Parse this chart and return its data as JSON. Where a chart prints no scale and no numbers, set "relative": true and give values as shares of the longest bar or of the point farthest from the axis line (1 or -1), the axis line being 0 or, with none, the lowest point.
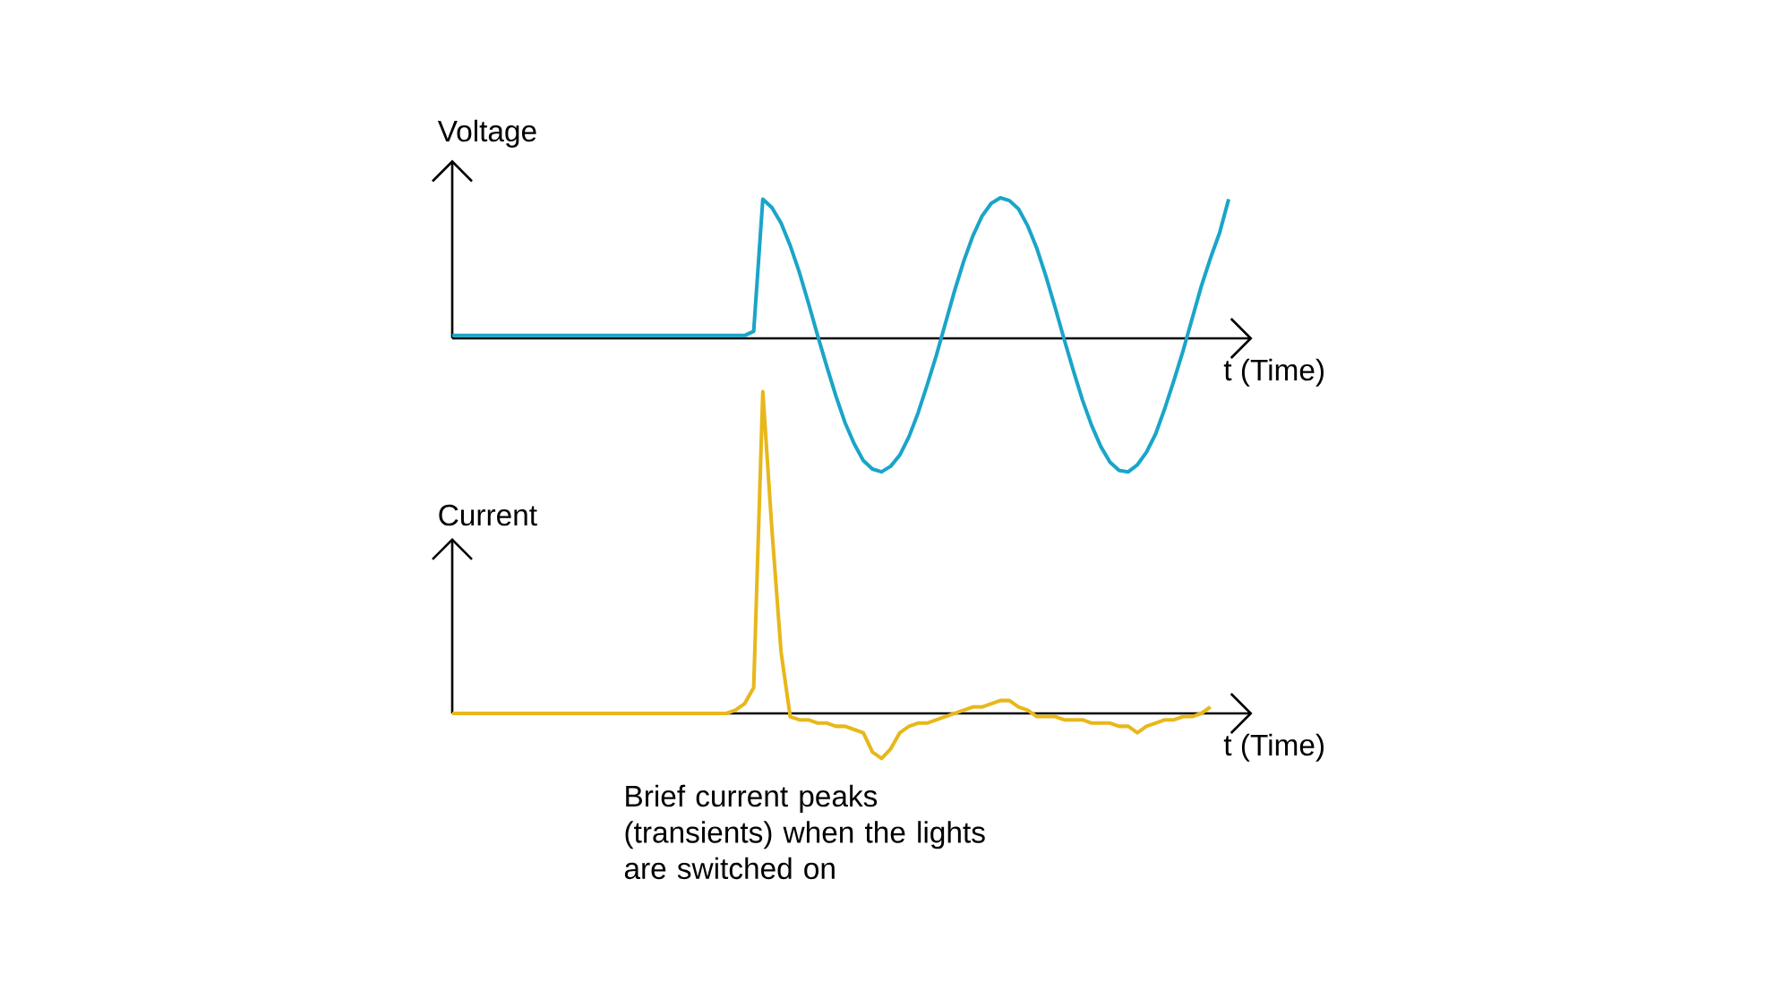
{
  "chart_data": [
    {
      "type": "line",
      "ylabel": "Voltage",
      "xlabel": "t (Time)",
      "relative": true,
      "color": "#1aa5c8",
      "categories": [
        null,
        null,
        null,
        null,
        null,
        null,
        null,
        null,
        null,
        null,
        null,
        null,
        null,
        null,
        null,
        null,
        null,
        null,
        null,
        null,
        null,
        null,
        null,
        null,
        null,
        null,
        null,
        null,
        null,
        null,
        null,
        null,
        null,
        null,
        null,
        null,
        null,
        null,
        null,
        null,
        null,
        null,
        null,
        null,
        null,
        null,
        null,
        null,
        null,
        null,
        null,
        null,
        null,
        null,
        null,
        null,
        null,
        null,
        null,
        null,
        null,
        null,
        null,
        null,
        null,
        null,
        null,
        null,
        null,
        null,
        null,
        null,
        null,
        null,
        null,
        null,
        null,
        null,
        null,
        null,
        null,
        null,
        null,
        null,
        null,
        null
      ],
      "values": [
        0.02,
        0.02,
        0.02,
        0.02,
        0.02,
        0.02,
        0.02,
        0.02,
        0.02,
        0.02,
        0.02,
        0.02,
        0.02,
        0.02,
        0.02,
        0.02,
        0.02,
        0.02,
        0.02,
        0.02,
        0.02,
        0.02,
        0.02,
        0.02,
        0.02,
        0.02,
        0.02,
        0.02,
        0.02,
        0.02,
        0.02,
        0.02,
        0.02,
        0.05,
        0.99,
        0.93,
        0.82,
        0.66,
        0.47,
        0.25,
        0.02,
        -0.2,
        -0.41,
        -0.6,
        -0.75,
        -0.87,
        -0.93,
        -0.95,
        -0.91,
        -0.83,
        -0.7,
        -0.53,
        -0.33,
        -0.12,
        0.11,
        0.34,
        0.55,
        0.73,
        0.87,
        0.96,
        1.0,
        0.98,
        0.92,
        0.8,
        0.64,
        0.44,
        0.22,
        -0.01,
        -0.23,
        -0.44,
        -0.62,
        -0.77,
        -0.88,
        -0.94,
        -0.95,
        -0.9,
        -0.81,
        -0.68,
        -0.5,
        -0.3,
        -0.09,
        0.14,
        0.37,
        0.57,
        0.75,
        0.99
      ]
    },
    {
      "type": "line",
      "ylabel": "Current",
      "xlabel": "t (Time)",
      "relative": true,
      "color": "#e8b71a",
      "annotations": [
        "Brief current peaks (transients) when the lights are switched on"
      ],
      "categories": [
        null,
        null,
        null,
        null,
        null,
        null,
        null,
        null,
        null,
        null,
        null,
        null,
        null,
        null,
        null,
        null,
        null,
        null,
        null,
        null,
        null,
        null,
        null,
        null,
        null,
        null,
        null,
        null,
        null,
        null,
        null,
        null,
        null,
        null,
        null,
        null,
        null,
        null,
        null,
        null,
        null,
        null,
        null,
        null,
        null,
        null,
        null,
        null,
        null,
        null,
        null,
        null,
        null,
        null,
        null,
        null,
        null,
        null,
        null,
        null,
        null,
        null,
        null,
        null,
        null,
        null,
        null,
        null,
        null,
        null,
        null,
        null,
        null,
        null,
        null,
        null,
        null,
        null,
        null,
        null,
        null,
        null,
        null,
        null,
        null,
        null
      ],
      "values": [
        0,
        0,
        0,
        0,
        0,
        0,
        0,
        0,
        0,
        0,
        0,
        0,
        0,
        0,
        0,
        0,
        0,
        0,
        0,
        0,
        0,
        0,
        0,
        0,
        0,
        0,
        0,
        0,
        0,
        0,
        0,
        0.01,
        0.03,
        0.08,
        1,
        0.57,
        0.19,
        -0.01,
        -0.02,
        -0.02,
        -0.03,
        -0.03,
        -0.04,
        -0.04,
        -0.05,
        -0.06,
        -0.12,
        -0.14,
        -0.11,
        -0.06,
        -0.04,
        -0.03,
        -0.03,
        -0.02,
        -0.01,
        0,
        0.01,
        0.02,
        0.02,
        0.03,
        0.04,
        0.04,
        0.02,
        0.01,
        -0.01,
        -0.01,
        -0.01,
        -0.02,
        -0.02,
        -0.02,
        -0.03,
        -0.03,
        -0.03,
        -0.04,
        -0.04,
        -0.06,
        -0.04,
        -0.03,
        -0.02,
        -0.02,
        -0.01,
        -0.01,
        0,
        0.02,
        null,
        null
      ]
    }
  ]
}
